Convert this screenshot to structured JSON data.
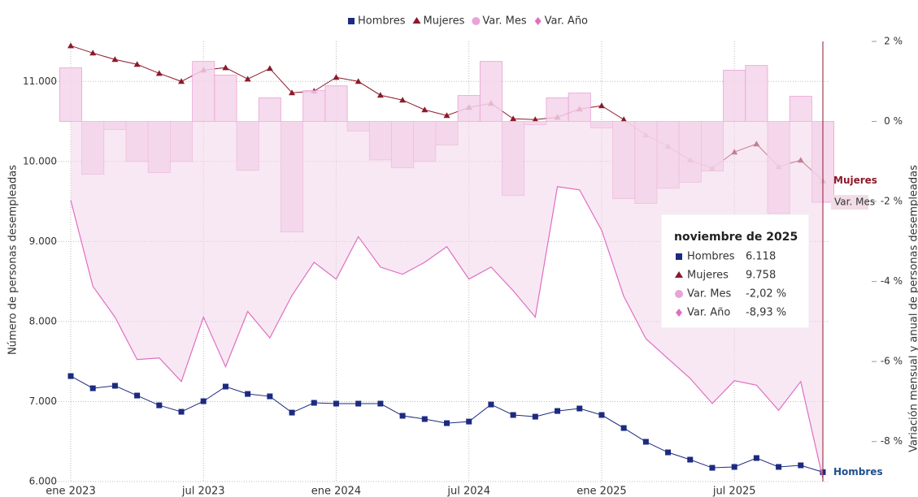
{
  "chart_data": {
    "type": "line",
    "categories": [
      "ene 2023",
      null,
      null,
      null,
      null,
      null,
      "jul 2023",
      null,
      null,
      null,
      null,
      null,
      "ene 2024",
      null,
      null,
      null,
      null,
      null,
      "jul 2024",
      null,
      null,
      null,
      null,
      null,
      "ene 2025",
      null,
      null,
      null,
      null,
      null,
      "jul 2025",
      null,
      null,
      null,
      null
    ],
    "y_label": "Número de personas desempleadas",
    "y2_label": "Variación mensual y anual de personas desempleadas",
    "ylim": [
      6000,
      11500
    ],
    "yticks": [
      {
        "value": 6000,
        "label": "6.000"
      },
      {
        "value": 7000,
        "label": "7.000"
      },
      {
        "value": 8000,
        "label": "8.000"
      },
      {
        "value": 9000,
        "label": "9.000"
      },
      {
        "value": 10000,
        "label": "10.000"
      },
      {
        "value": 11000,
        "label": "11.000"
      }
    ],
    "y2lim": [
      -9,
      2
    ],
    "y2ticks": [
      {
        "value": -8,
        "label": "-8 %"
      },
      {
        "value": -6,
        "label": "-6 %"
      },
      {
        "value": -4,
        "label": "-4 %"
      },
      {
        "value": -2,
        "label": "-2 %"
      },
      {
        "value": 0,
        "label": "0 %"
      },
      {
        "value": 2,
        "label": "2 %"
      }
    ],
    "grid": true,
    "series": [
      {
        "name": "Hombres",
        "color": "#1c2a80",
        "marker": "square",
        "values": [
          7318,
          7166,
          7197,
          7075,
          6953,
          6872,
          7004,
          7187,
          7095,
          7065,
          6862,
          6984,
          6974,
          6974,
          6974,
          6822,
          6781,
          6730,
          6750,
          6963,
          6832,
          6811,
          6882,
          6913,
          6832,
          6669,
          6497,
          6365,
          6274,
          6172,
          6183,
          6294,
          6183,
          6203,
          6118
        ]
      },
      {
        "name": "Mujeres",
        "color": "#8b1a2b",
        "marker": "triangle",
        "values": [
          11446,
          11355,
          11274,
          11213,
          11101,
          11000,
          11142,
          11172,
          11030,
          11162,
          10858,
          10878,
          11051,
          11000,
          10828,
          10767,
          10645,
          10574,
          10675,
          10726,
          10533,
          10523,
          10553,
          10655,
          10696,
          10523,
          10331,
          10188,
          10016,
          9915,
          10118,
          10219,
          9935,
          10016,
          9758
        ]
      },
      {
        "name": "Var. Mes",
        "color": "#eaa3d6",
        "marker": "circle",
        "axis": "y2",
        "kind": "step-bar",
        "values": [
          1.34,
          -1.32,
          -0.2,
          -1.0,
          -1.28,
          -1.0,
          1.5,
          1.16,
          -1.22,
          0.59,
          -2.76,
          0.77,
          0.89,
          -0.24,
          -0.96,
          -1.16,
          -1.0,
          -0.59,
          0.65,
          1.5,
          -1.85,
          -0.08,
          0.59,
          0.71,
          -0.16,
          -1.93,
          -2.05,
          -1.67,
          -1.52,
          -1.24,
          1.28,
          1.4,
          -2.3,
          0.63,
          -2.02
        ]
      },
      {
        "name": "Var. Año",
        "color": "#e06ec2",
        "marker": "diamond",
        "axis": "y2",
        "kind": "area",
        "values": [
          -1.97,
          -4.12,
          -4.89,
          -5.95,
          -5.91,
          -6.5,
          -4.89,
          -6.13,
          -4.75,
          -5.41,
          -4.35,
          -3.52,
          -3.94,
          -2.88,
          -3.64,
          -3.82,
          -3.52,
          -3.13,
          -3.94,
          -3.64,
          -4.23,
          -4.89,
          -1.63,
          -1.71,
          -2.72,
          -4.37,
          -5.43,
          -5.93,
          -6.42,
          -7.05,
          -6.48,
          -6.59,
          -7.22,
          -6.5,
          -8.93
        ]
      }
    ],
    "tooltip": {
      "title": "noviembre de 2025",
      "values": [
        "6.118",
        "9.758",
        "-2,02 %",
        "-8,93 %"
      ]
    }
  }
}
